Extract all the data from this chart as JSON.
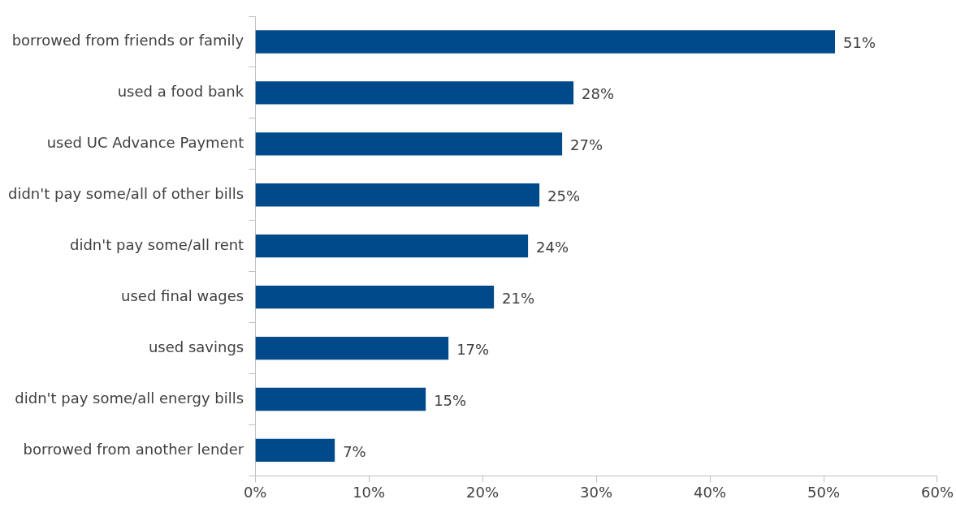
{
  "chart_data": {
    "type": "bar",
    "orientation": "horizontal",
    "categories": [
      "borrowed from friends or family",
      "used a food bank",
      "used UC Advance Payment",
      "didn't pay some/all of other bills",
      "didn't pay some/all rent",
      "used final wages",
      "used savings",
      "didn't pay some/all energy bills",
      "borrowed from another lender"
    ],
    "values": [
      51,
      28,
      27,
      25,
      24,
      21,
      17,
      15,
      7
    ],
    "value_labels": [
      "51%",
      "28%",
      "27%",
      "25%",
      "24%",
      "21%",
      "17%",
      "15%",
      "7%"
    ],
    "color": "#004a8c",
    "xlim": [
      0,
      60
    ],
    "xticks": [
      {
        "value": 0,
        "label": "0%"
      },
      {
        "value": 10,
        "label": "10%"
      },
      {
        "value": 20,
        "label": "20%"
      },
      {
        "value": 30,
        "label": "30%"
      },
      {
        "value": 40,
        "label": "40%"
      },
      {
        "value": 50,
        "label": "50%"
      },
      {
        "value": 60,
        "label": "60%"
      }
    ],
    "grid": false,
    "legend": false
  }
}
